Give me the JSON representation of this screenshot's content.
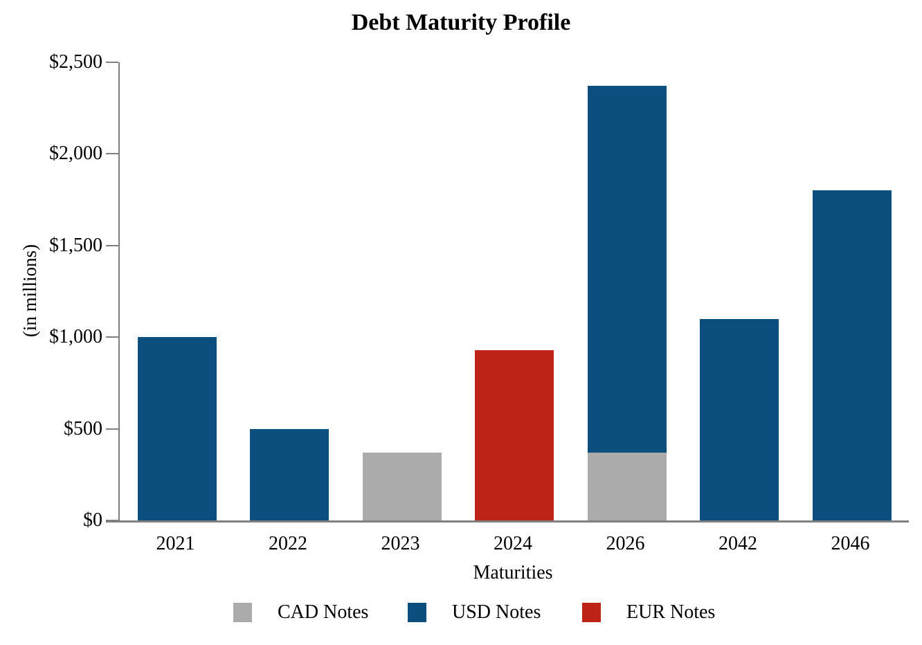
{
  "title": "Debt Maturity Profile",
  "y_axis": {
    "label": "(in millions)",
    "tick_labels": [
      "$0",
      "$500",
      "$1,000",
      "$1,500",
      "$2,000",
      "$2,500"
    ],
    "min": 0,
    "max": 2500,
    "step": 500
  },
  "x_axis": {
    "label": "Maturities"
  },
  "legend": [
    {
      "label": "CAD Notes",
      "color": "#ababab"
    },
    {
      "label": "USD Notes",
      "color": "#0c4e7e"
    },
    {
      "label": "EUR Notes",
      "color": "#be2317"
    }
  ],
  "colors": {
    "axis": "#7f7f7f",
    "cad": "#ababab",
    "usd": "#0c4e7e",
    "eur": "#be2317"
  },
  "chart_data": {
    "type": "bar",
    "stacked": true,
    "title": "Debt Maturity Profile",
    "xlabel": "Maturities",
    "ylabel": "(in millions)",
    "ylim": [
      0,
      2500
    ],
    "grid": false,
    "legend_position": "bottom",
    "categories": [
      "2021",
      "2022",
      "2023",
      "2024",
      "2026",
      "2042",
      "2046"
    ],
    "series": [
      {
        "name": "CAD Notes",
        "color": "#ababab",
        "values": [
          0,
          0,
          370,
          0,
          370,
          0,
          0
        ]
      },
      {
        "name": "USD Notes",
        "color": "#0c4e7e",
        "values": [
          1000,
          500,
          0,
          0,
          2000,
          1100,
          1800
        ]
      },
      {
        "name": "EUR Notes",
        "color": "#be2317",
        "values": [
          0,
          0,
          0,
          930,
          0,
          0,
          0
        ]
      }
    ],
    "totals": [
      1000,
      500,
      370,
      930,
      2370,
      1100,
      1800
    ]
  }
}
